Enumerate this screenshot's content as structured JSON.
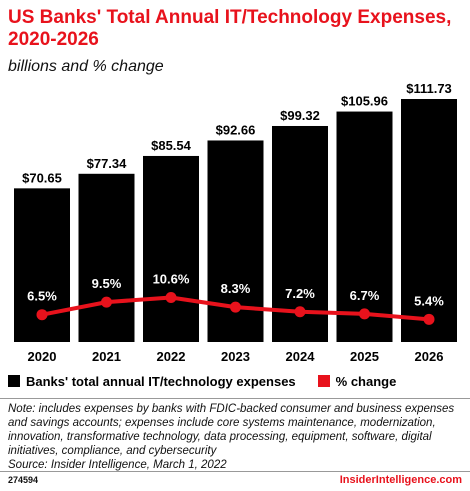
{
  "title": "US Banks' Total Annual IT/Technology Expenses, 2020-2026",
  "subtitle": "billions and % change",
  "chart_data": {
    "type": "bar",
    "categories": [
      "2020",
      "2021",
      "2022",
      "2023",
      "2024",
      "2025",
      "2026"
    ],
    "series": [
      {
        "name": "Banks' total annual IT/technology expenses",
        "type": "bar",
        "values": [
          70.65,
          77.34,
          85.54,
          92.66,
          99.32,
          105.96,
          111.73
        ],
        "labels": [
          "$70.65",
          "$77.34",
          "$85.54",
          "$92.66",
          "$99.32",
          "$105.96",
          "$111.73"
        ],
        "color": "#000000"
      },
      {
        "name": "% change",
        "type": "line",
        "values": [
          6.5,
          9.5,
          10.6,
          8.3,
          7.2,
          6.7,
          5.4
        ],
        "labels": [
          "6.5%",
          "9.5%",
          "10.6%",
          "8.3%",
          "7.2%",
          "6.7%",
          "5.4%"
        ],
        "color": "#e8121c"
      }
    ],
    "ylim": [
      0,
      111.73
    ],
    "grid": false,
    "legend_position": "bottom-left"
  },
  "note": "Note: includes expenses by banks with FDIC-backed consumer and business expenses and savings accounts; expenses include core systems maintenance, modernization, innovation, transformative technology, data processing, equipment, software, digital initiatives, compliance, and cybersecurity",
  "source": "Source: Insider Intelligence, March 1, 2022",
  "footer_id": "274594",
  "brand": "InsiderIntelligence.com"
}
